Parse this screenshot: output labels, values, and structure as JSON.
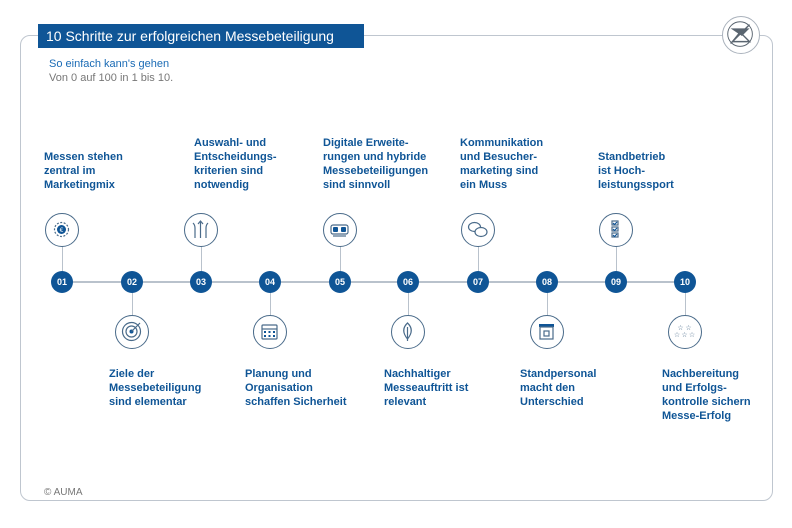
{
  "header": {
    "title": "10 Schritte zur erfolgreichen Messebeteiligung",
    "subtitle": "So einfach kann's gehen",
    "subtitle2": "Von 0 auf 100 in 1 bis 10."
  },
  "footer": {
    "copyright": "© AUMA"
  },
  "colors": {
    "accent": "#0f5596",
    "line": "#b9c2cc",
    "icon_stroke": "#4a6b8a"
  },
  "steps": [
    {
      "number": "01",
      "label": "Messen stehen\nzentral im\nMarketingmix",
      "icon": "euro-gear-icon"
    },
    {
      "number": "02",
      "label": "Ziele der\nMessebeteiligung\nsind elementar",
      "icon": "target-icon"
    },
    {
      "number": "03",
      "label": "Auswahl- und\nEntscheidungs-\nkriterien sind\nnotwendig",
      "icon": "decision-arrows-icon"
    },
    {
      "number": "04",
      "label": "Planung und\nOrganisation\nschaffen Sicherheit",
      "icon": "calendar-icon"
    },
    {
      "number": "05",
      "label": "Digitale Erweite-\nrungen und hybride\nMessebeteiligungen\nsind sinnvoll",
      "icon": "vr-glasses-icon"
    },
    {
      "number": "06",
      "label": "Nachhaltiger\nMesseauftritt ist\nrelevant",
      "icon": "leaf-icon"
    },
    {
      "number": "07",
      "label": "Kommunikation\nund Besucher-\nmarketing sind\nein Muss",
      "icon": "speech-bubbles-icon"
    },
    {
      "number": "08",
      "label": "Standpersonal\nmacht den\nUnterschied",
      "icon": "booth-icon"
    },
    {
      "number": "09",
      "label": "Standbetrieb\nist Hoch-\nleistungssport",
      "icon": "checklist-icon"
    },
    {
      "number": "10",
      "label": "Nachbereitung\nund Erfolgs-\nkontrolle sichern\nMesse-Erfolg",
      "icon": "stars-icon"
    }
  ]
}
